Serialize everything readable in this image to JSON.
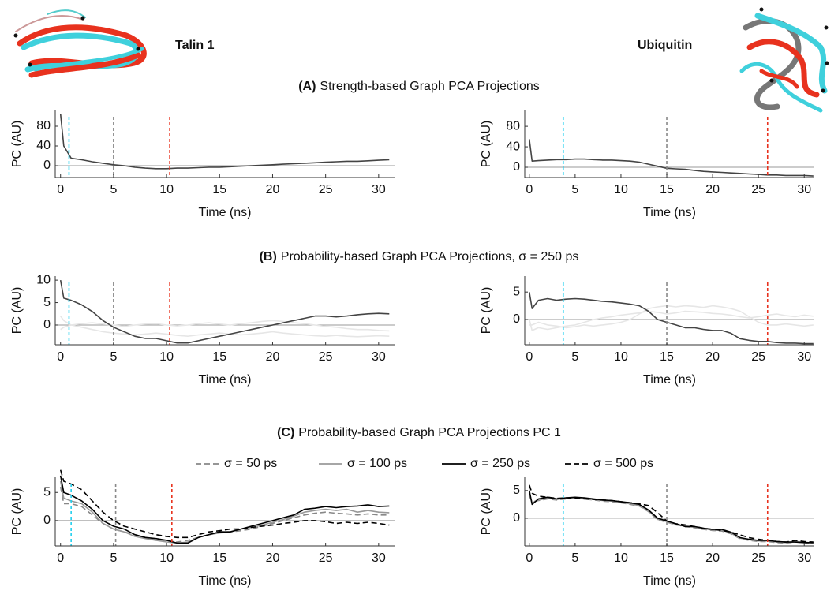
{
  "proteins": [
    {
      "name": "Talin 1"
    },
    {
      "name": "Ubiquitin"
    }
  ],
  "sections": [
    {
      "label": "(A)",
      "title": "Strength-based Graph PCA Projections"
    },
    {
      "label": "(B)",
      "title": "Probability-based Graph PCA Projections, σ = 250 ps"
    },
    {
      "label": "(C)",
      "title": "Probability-based Graph PCA Projections PC 1"
    }
  ],
  "chart_data": [
    {
      "type": "line",
      "xlabel": "Time (ns)",
      "ylabel": "PC (AU)",
      "xlim": [
        -0.5,
        31.5
      ],
      "ylim": [
        -24,
        112
      ],
      "xticks": [
        0,
        5,
        10,
        15,
        20,
        25,
        30
      ],
      "yticks": [
        0,
        40,
        80
      ],
      "hline": 0,
      "x": [
        0,
        0.3,
        1,
        2,
        3,
        4,
        5,
        6,
        7,
        8,
        9,
        10,
        11,
        12,
        13,
        14,
        15,
        16,
        17,
        18,
        19,
        20,
        21,
        22,
        23,
        24,
        25,
        26,
        27,
        28,
        29,
        30,
        31
      ],
      "vlines": [
        {
          "x": 0.8,
          "color": "#22cfee"
        },
        {
          "x": 5,
          "color": "#888888"
        },
        {
          "x": 10.3,
          "color": "#e8321e"
        }
      ],
      "series": [
        {
          "color": "#444444",
          "values": [
            105,
            40,
            15,
            12,
            8,
            5,
            2,
            0,
            -3,
            -5,
            -6,
            -6,
            -5,
            -5,
            -4,
            -3,
            -3,
            -2,
            -1,
            0,
            1,
            2,
            3,
            4,
            5,
            6,
            7,
            8,
            9,
            9,
            10,
            11,
            12
          ]
        }
      ]
    },
    {
      "type": "line",
      "xlabel": "Time (ns)",
      "ylabel": "PC (AU)",
      "xlim": [
        -0.5,
        31.1
      ],
      "ylim": [
        -20,
        111
      ],
      "xticks": [
        0,
        5,
        10,
        15,
        20,
        25,
        30
      ],
      "yticks": [
        0,
        40,
        80
      ],
      "hline": 0,
      "x": [
        0,
        0.3,
        1,
        2,
        3,
        4,
        5,
        6,
        7,
        8,
        9,
        10,
        11,
        12,
        13,
        14,
        15,
        16,
        17,
        18,
        19,
        20,
        21,
        22,
        23,
        24,
        25,
        26,
        27,
        28,
        29,
        30,
        31
      ],
      "vlines": [
        {
          "x": 3.7,
          "color": "#22cfee"
        },
        {
          "x": 15,
          "color": "#888888"
        },
        {
          "x": 26,
          "color": "#e8321e"
        }
      ],
      "series": [
        {
          "color": "#444444",
          "values": [
            55,
            12,
            13,
            14,
            15,
            15,
            16,
            16,
            15,
            14,
            14,
            13,
            12,
            10,
            6,
            2,
            -2,
            -3,
            -4,
            -6,
            -8,
            -9,
            -10,
            -11,
            -12,
            -13,
            -14,
            -15,
            -15,
            -16,
            -16,
            -16,
            -17
          ]
        }
      ]
    },
    {
      "type": "line",
      "xlabel": "Time (ns)",
      "ylabel": "PC (AU)",
      "xlim": [
        -0.5,
        31.5
      ],
      "ylim": [
        -4.4,
        10.9
      ],
      "xticks": [
        0,
        5,
        10,
        15,
        20,
        25,
        30
      ],
      "yticks": [
        0,
        5,
        10
      ],
      "hline": 0,
      "x": [
        0,
        0.3,
        1,
        2,
        3,
        4,
        5,
        6,
        7,
        8,
        9,
        10,
        11,
        12,
        13,
        14,
        15,
        16,
        17,
        18,
        19,
        20,
        21,
        22,
        23,
        24,
        25,
        26,
        27,
        28,
        29,
        30,
        31
      ],
      "vlines": [
        {
          "x": 0.8,
          "color": "#22cfee"
        },
        {
          "x": 5,
          "color": "#888888"
        },
        {
          "x": 10.3,
          "color": "#e8321e"
        }
      ],
      "series": [
        {
          "color": "#e6e6e6",
          "values": [
            -1,
            -0.5,
            0,
            0.3,
            0.5,
            0.2,
            0,
            -0.3,
            0,
            0.2,
            0.3,
            0,
            -0.2,
            0,
            0.3,
            0.5,
            0.2,
            0,
            0.3,
            0.5,
            0.8,
            1,
            0.8,
            0.5,
            0.3,
            0,
            -0.3,
            -0.5,
            -0.8,
            -1,
            -1,
            -1.2,
            -1.3
          ]
        },
        {
          "color": "#e6e6e6",
          "values": [
            2,
            1,
            0,
            -0.5,
            -1,
            -1.5,
            -1.8,
            -2,
            -2.2,
            -2,
            -1.8,
            -2,
            -2.3,
            -2.5,
            -2.2,
            -2,
            -1.8,
            -2,
            -2.2,
            -2,
            -1.8,
            -1.5,
            -1.8,
            -2,
            -2.2,
            -2.4,
            -2.5,
            -2.3,
            -2.5,
            -2.6,
            -2.5,
            -2.4,
            -2.5
          ]
        },
        {
          "color": "#444444",
          "values": [
            10,
            6,
            5.5,
            4.5,
            3,
            1,
            -0.5,
            -1.5,
            -2.5,
            -3,
            -3,
            -3.5,
            -4,
            -4,
            -3.5,
            -3,
            -2.5,
            -2,
            -1.5,
            -1,
            -0.5,
            0,
            0.5,
            1,
            1.5,
            2,
            2,
            1.8,
            2,
            2.3,
            2.5,
            2.6,
            2.5
          ]
        }
      ]
    },
    {
      "type": "line",
      "xlabel": "Time (ns)",
      "ylabel": "PC (AU)",
      "xlim": [
        -0.5,
        31.1
      ],
      "ylim": [
        -4.6,
        7.9
      ],
      "xticks": [
        0,
        5,
        10,
        15,
        20,
        25,
        30
      ],
      "yticks": [
        0,
        5
      ],
      "hline": 0,
      "x": [
        0,
        0.3,
        1,
        2,
        3,
        4,
        5,
        6,
        7,
        8,
        9,
        10,
        11,
        12,
        13,
        14,
        15,
        16,
        17,
        18,
        19,
        20,
        21,
        22,
        23,
        24,
        25,
        26,
        27,
        28,
        29,
        30,
        31
      ],
      "vlines": [
        {
          "x": 3.7,
          "color": "#22cfee"
        },
        {
          "x": 15,
          "color": "#888888"
        },
        {
          "x": 26,
          "color": "#e8321e"
        }
      ],
      "series": [
        {
          "color": "#e6e6e6",
          "values": [
            -1,
            -1,
            -0.5,
            -1,
            -1.2,
            -1.5,
            -1.3,
            -1,
            -1.2,
            -1,
            -0.8,
            -0.5,
            0,
            1,
            2,
            2.3,
            2.5,
            2.3,
            2.5,
            2.4,
            2.2,
            2.5,
            2.3,
            2,
            1.5,
            0.5,
            -0.5,
            -1,
            -1,
            -0.8,
            -1,
            -1.2,
            -1
          ]
        },
        {
          "color": "#e6e6e6",
          "values": [
            0,
            -2,
            -1.5,
            -1.8,
            -1.5,
            -1.2,
            -1,
            -0.5,
            0,
            0.3,
            0.5,
            0.8,
            1,
            1.2,
            1.5,
            1.3,
            1,
            1.2,
            1.5,
            1.4,
            1.3,
            1.1,
            1,
            0.8,
            0.5,
            0.3,
            0.5,
            0.8,
            1,
            0.7,
            0.5,
            0.8,
            0.6
          ]
        },
        {
          "color": "#444444",
          "values": [
            5,
            2,
            3.5,
            3.8,
            3.5,
            3.7,
            3.8,
            3.7,
            3.5,
            3.3,
            3.2,
            3,
            2.8,
            2.5,
            1.5,
            0,
            -0.5,
            -1,
            -1.5,
            -1.5,
            -1.8,
            -2,
            -2,
            -2.5,
            -3.5,
            -3.8,
            -4,
            -4,
            -4.2,
            -4.3,
            -4.3,
            -4.4,
            -4.4
          ]
        }
      ]
    },
    {
      "type": "line",
      "xlabel": "Time (ns)",
      "ylabel": "PC (AU)",
      "xlim": [
        -0.5,
        31.5
      ],
      "ylim": [
        -4.5,
        7.7
      ],
      "xticks": [
        0,
        5,
        10,
        15,
        20,
        25,
        30
      ],
      "yticks": [
        0,
        5
      ],
      "hline": 0,
      "x": [
        0,
        0.3,
        1,
        2,
        3,
        4,
        5,
        6,
        7,
        8,
        9,
        10,
        11,
        12,
        13,
        14,
        15,
        16,
        17,
        18,
        19,
        20,
        21,
        22,
        23,
        24,
        25,
        26,
        27,
        28,
        29,
        30,
        31
      ],
      "vlines": [
        {
          "x": 1,
          "color": "#22cfee"
        },
        {
          "x": 5.2,
          "color": "#888888"
        },
        {
          "x": 10.5,
          "color": "#e8321e"
        }
      ],
      "series": [
        {
          "name": "σ = 50 ps",
          "color": "#888888",
          "dash": true,
          "values": [
            6,
            3,
            3,
            2.5,
            1,
            -0.5,
            -1.5,
            -2,
            -2.5,
            -3,
            -3.5,
            -3.5,
            -3.8,
            -3.5,
            -3,
            -2.5,
            -2,
            -2,
            -1.8,
            -1.5,
            -1,
            -0.5,
            0,
            0.5,
            1,
            1.3,
            1.5,
            1.3,
            1.2,
            1,
            1.2,
            1,
            1
          ]
        },
        {
          "name": "σ = 100 ps",
          "color": "#999999",
          "dash": false,
          "values": [
            7,
            4,
            3.5,
            3,
            1.5,
            -0.5,
            -1.5,
            -2,
            -2.8,
            -3.2,
            -3.5,
            -3.8,
            -4,
            -3.8,
            -3,
            -2.5,
            -2.2,
            -2,
            -1.5,
            -1.2,
            -0.8,
            -0.3,
            0.2,
            0.8,
            1.5,
            1.8,
            2,
            1.8,
            2,
            1.5,
            1.8,
            1.5,
            1.4
          ]
        },
        {
          "name": "σ = 250 ps",
          "color": "#000000",
          "dash": false,
          "values": [
            8,
            5,
            4.5,
            3.5,
            2,
            0,
            -1,
            -1.5,
            -2.5,
            -3,
            -3.2,
            -3.5,
            -4,
            -4,
            -3,
            -2.5,
            -2,
            -2,
            -1.5,
            -1,
            -0.5,
            0,
            0.5,
            1,
            2,
            2.2,
            2.5,
            2.3,
            2.5,
            2.6,
            2.8,
            2.5,
            2.6
          ]
        },
        {
          "name": "σ = 500 ps",
          "color": "#000000",
          "dash": true,
          "values": [
            9,
            7,
            6.5,
            5.5,
            3.5,
            1.5,
            0,
            -1,
            -1.5,
            -2,
            -2.5,
            -2.8,
            -3,
            -3,
            -2.5,
            -2,
            -1.8,
            -1.5,
            -1.5,
            -1.2,
            -1,
            -0.8,
            -0.5,
            -0.3,
            0,
            0,
            -0.2,
            -0.5,
            -0.3,
            -0.5,
            -0.3,
            -0.5,
            -0.8
          ]
        }
      ]
    },
    {
      "type": "line",
      "xlabel": "Time (ns)",
      "ylabel": "PC (AU)",
      "xlim": [
        -0.5,
        31.1
      ],
      "ylim": [
        -5,
        7.4
      ],
      "xticks": [
        0,
        5,
        10,
        15,
        20,
        25,
        30
      ],
      "yticks": [
        0,
        5
      ],
      "hline": 0,
      "x": [
        0,
        0.3,
        1,
        2,
        3,
        4,
        5,
        6,
        7,
        8,
        9,
        10,
        11,
        12,
        13,
        14,
        15,
        16,
        17,
        18,
        19,
        20,
        21,
        22,
        23,
        24,
        25,
        26,
        27,
        28,
        29,
        30,
        31
      ],
      "vlines": [
        {
          "x": 3.7,
          "color": "#22cfee"
        },
        {
          "x": 15,
          "color": "#888888"
        },
        {
          "x": 26,
          "color": "#e8321e"
        }
      ],
      "series": [
        {
          "color": "#888888",
          "dash": true,
          "values": [
            4,
            3,
            3.2,
            3.5,
            3.3,
            3.5,
            3.6,
            3.5,
            3.3,
            3.1,
            3,
            2.8,
            2.5,
            2.2,
            1.2,
            -0.3,
            -0.7,
            -1.2,
            -1.5,
            -1.7,
            -2,
            -2.2,
            -2.3,
            -2.8,
            -3.7,
            -4,
            -4.2,
            -4.2,
            -4.4,
            -4.5,
            -4.3,
            -4.4,
            -4.6
          ]
        },
        {
          "color": "#999999",
          "dash": false,
          "values": [
            4.5,
            2.8,
            3.3,
            3.6,
            3.4,
            3.6,
            3.7,
            3.6,
            3.4,
            3.2,
            3.1,
            2.9,
            2.6,
            2.3,
            1.3,
            -0.2,
            -0.6,
            -1.1,
            -1.4,
            -1.6,
            -1.9,
            -2.1,
            -2.1,
            -2.7,
            -3.6,
            -3.9,
            -4.1,
            -4.1,
            -4.3,
            -4.4,
            -4.2,
            -4.3,
            -4.5
          ]
        },
        {
          "color": "#000000",
          "dash": false,
          "values": [
            5,
            2.5,
            3.5,
            3.8,
            3.5,
            3.7,
            3.8,
            3.7,
            3.5,
            3.3,
            3.2,
            3,
            2.8,
            2.5,
            1.5,
            0,
            -0.5,
            -1,
            -1.5,
            -1.5,
            -1.8,
            -2,
            -2,
            -2.5,
            -3.5,
            -3.8,
            -4,
            -4,
            -4.2,
            -4.3,
            -4.3,
            -4.4,
            -4.4
          ]
        },
        {
          "color": "#000000",
          "dash": true,
          "values": [
            6,
            4.5,
            4,
            3.8,
            3.6,
            3.7,
            3.6,
            3.5,
            3.4,
            3.3,
            3.2,
            3,
            2.8,
            2.6,
            2.3,
            1,
            -0.5,
            -1,
            -1.2,
            -1.5,
            -1.8,
            -2,
            -2.2,
            -2.5,
            -3,
            -3.5,
            -3.8,
            -4,
            -4.2,
            -4.3,
            -4,
            -4.2,
            -4.3
          ]
        }
      ]
    }
  ]
}
